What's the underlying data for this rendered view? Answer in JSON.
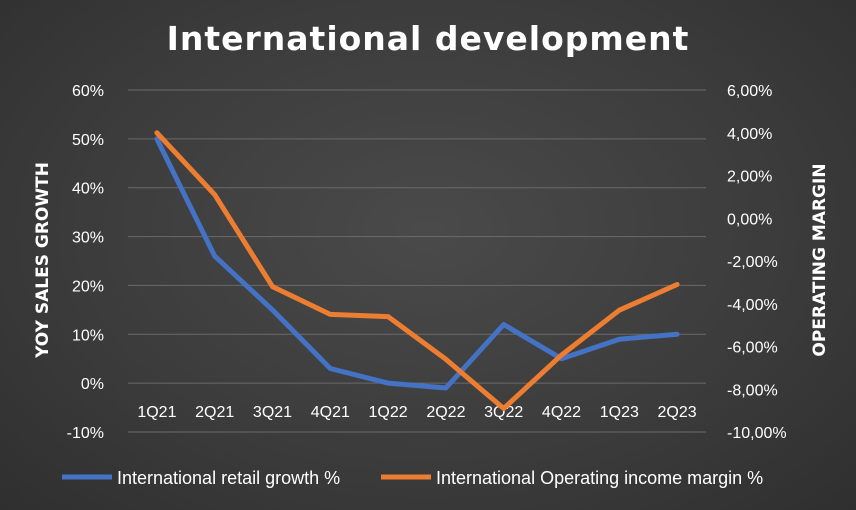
{
  "chart_data": {
    "type": "line",
    "title": "International development",
    "categories": [
      "1Q21",
      "2Q21",
      "3Q21",
      "4Q21",
      "1Q22",
      "2Q22",
      "3Q22",
      "4Q22",
      "1Q23",
      "2Q23"
    ],
    "ylabel_left": "YOY SALES GROWTH",
    "ylabel_right": "OPERATING MARGIN",
    "ylim_left": [
      -10,
      60
    ],
    "ylim_right": [
      -10,
      6
    ],
    "left_ticks": [
      60,
      50,
      40,
      30,
      20,
      10,
      0,
      -10
    ],
    "left_tick_labels": [
      "60%",
      "50%",
      "40%",
      "30%",
      "20%",
      "10%",
      "0%",
      "-10%"
    ],
    "right_ticks": [
      6,
      4,
      2,
      0,
      -2,
      -4,
      -6,
      -8,
      -10
    ],
    "right_tick_labels": [
      "6,00%",
      "4,00%",
      "2,00%",
      "0,00%",
      "-2,00%",
      "-4,00%",
      "-6,00%",
      "-8,00%",
      "-10,00%"
    ],
    "series": [
      {
        "name": "International retail growth %",
        "axis": "left",
        "color": "#4472c4",
        "values": [
          50,
          26,
          15,
          3,
          0,
          -1,
          12,
          5,
          9,
          10
        ]
      },
      {
        "name": "International Operating income margin %",
        "axis": "right",
        "color": "#ed7d31",
        "values": [
          4.0,
          1.1,
          -3.2,
          -4.5,
          -4.6,
          -6.6,
          -8.9,
          -6.4,
          -4.3,
          -3.1
        ]
      }
    ],
    "legend_position": "bottom",
    "grid": true
  }
}
